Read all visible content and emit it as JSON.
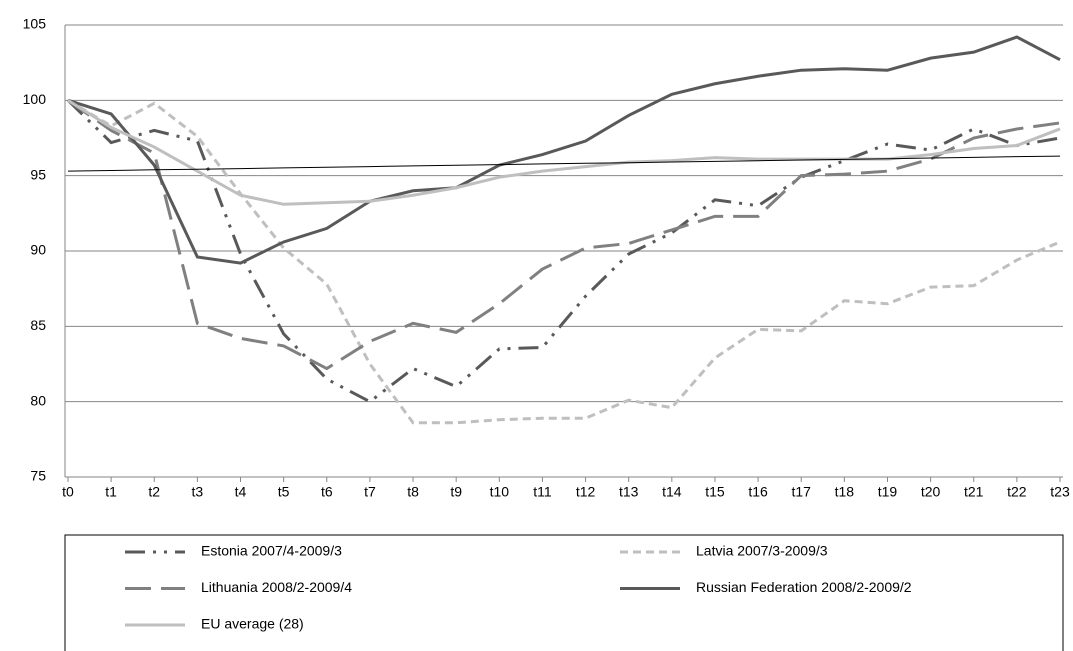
{
  "chart_data": {
    "type": "line",
    "categories": [
      "t0",
      "t1",
      "t2",
      "t3",
      "t4",
      "t5",
      "t6",
      "t7",
      "t8",
      "t9",
      "t10",
      "t11",
      "t12",
      "t13",
      "t14",
      "t15",
      "t16",
      "t17",
      "t18",
      "t19",
      "t20",
      "t21",
      "t22",
      "t23"
    ],
    "ylim": [
      75,
      105
    ],
    "yticks": [
      75,
      80,
      85,
      90,
      95,
      100,
      105
    ],
    "grid": true,
    "legend": "bottom",
    "series": [
      {
        "name": "Estonia 2007/4-2009/3",
        "color": "#595959",
        "dash": "20,8,3,8,3,8",
        "width": 3,
        "values": [
          100,
          97.2,
          98.0,
          97.3,
          89.8,
          84.5,
          81.5,
          80.0,
          82.2,
          81.0,
          83.5,
          83.6,
          87.0,
          89.8,
          91.2,
          93.4,
          93.0,
          94.9,
          96.0,
          97.1,
          96.7,
          98.1,
          97.0,
          97.5
        ]
      },
      {
        "name": "Latvia 2007/3-2009/3",
        "color": "#bfbfbf",
        "dash": "8,5",
        "width": 3,
        "values": [
          100,
          98.3,
          99.8,
          97.6,
          93.8,
          90.2,
          87.8,
          82.5,
          78.6,
          78.6,
          78.8,
          78.9,
          78.9,
          80.1,
          79.6,
          82.9,
          84.8,
          84.7,
          86.7,
          86.5,
          87.6,
          87.7,
          89.4,
          90.6
        ]
      },
      {
        "name": "Lithuania 2008/2-2009/4",
        "color": "#808080",
        "dash": "26,10",
        "width": 3,
        "values": [
          100,
          98.0,
          96.5,
          85.2,
          84.2,
          83.7,
          82.2,
          84.0,
          85.2,
          84.6,
          86.5,
          88.8,
          90.2,
          90.5,
          91.4,
          92.3,
          92.3,
          95.0,
          95.1,
          95.3,
          96.1,
          97.5,
          98.1,
          98.5
        ]
      },
      {
        "name": "Russian Federation 2008/2-2009/2",
        "color": "#595959",
        "dash": "none",
        "width": 3,
        "values": [
          100,
          99.1,
          95.7,
          89.6,
          89.2,
          90.6,
          91.5,
          93.3,
          94.0,
          94.2,
          95.7,
          96.4,
          97.3,
          99.0,
          100.4,
          101.1,
          101.6,
          102.0,
          102.1,
          102.0,
          102.8,
          103.2,
          104.2,
          102.7
        ]
      },
      {
        "name": "EU average (28)",
        "color": "#bfbfbf",
        "dash": "none",
        "width": 3,
        "values": [
          100,
          98.2,
          96.9,
          95.3,
          93.7,
          93.1,
          93.2,
          93.3,
          93.7,
          94.2,
          94.9,
          95.3,
          95.6,
          95.9,
          96.0,
          96.2,
          96.1,
          96.1,
          96.1,
          96.1,
          96.4,
          96.8,
          97.0,
          98.1
        ]
      },
      {
        "color": "#000000",
        "dash": "none",
        "width": 1,
        "values": [
          95.3,
          95.34,
          95.39,
          95.43,
          95.47,
          95.52,
          95.56,
          95.6,
          95.65,
          95.69,
          95.73,
          95.78,
          95.82,
          95.86,
          95.91,
          95.95,
          95.99,
          96.04,
          96.08,
          96.12,
          96.17,
          96.21,
          96.26,
          96.3
        ]
      }
    ]
  }
}
